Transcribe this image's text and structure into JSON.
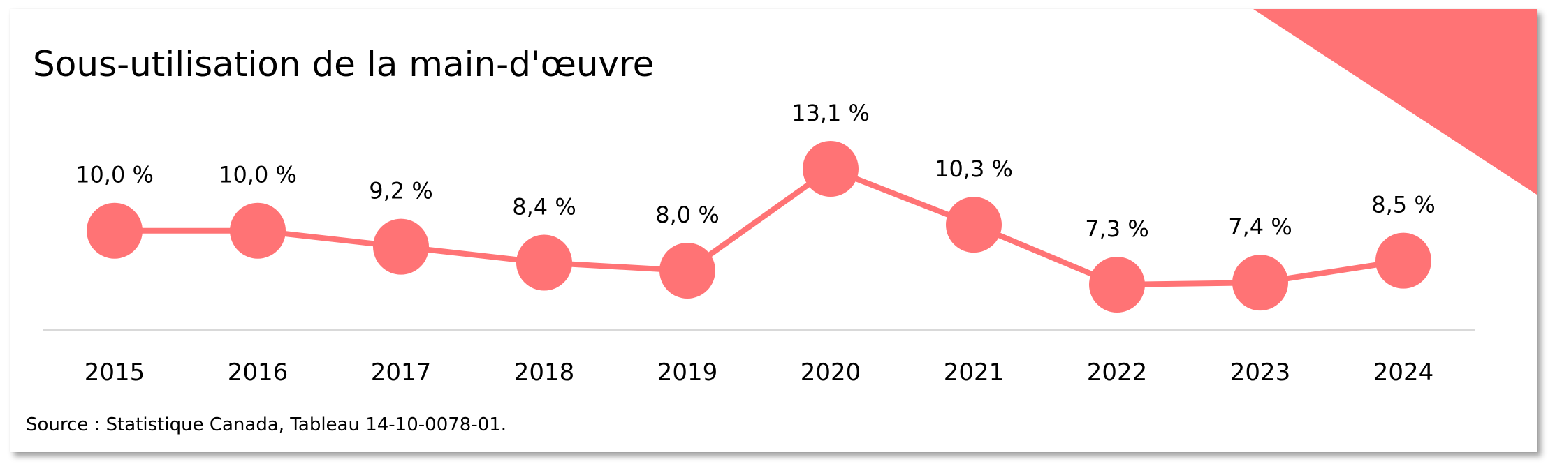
{
  "title": "Sous-utilisation de la main-d'œuvre",
  "source": "Source : Statistique Canada, Tableau 14-10-0078-01.",
  "colors": {
    "accent": "#ff7375",
    "axis": "#d9d9d9",
    "text": "#000000",
    "background": "#ffffff"
  },
  "corner_decoration": "triangle-top-right",
  "chart_data": {
    "type": "line",
    "title": "Sous-utilisation de la main-d'œuvre",
    "xlabel": "",
    "ylabel": "",
    "categories": [
      "2015",
      "2016",
      "2017",
      "2018",
      "2019",
      "2020",
      "2021",
      "2022",
      "2023",
      "2024"
    ],
    "series": [
      {
        "name": "Sous-utilisation de la main-d'œuvre",
        "values": [
          10.0,
          10.0,
          9.2,
          8.4,
          8.0,
          13.1,
          10.3,
          7.3,
          7.4,
          8.5
        ],
        "labels": [
          "10,0 %",
          "10,0 %",
          "9,2 %",
          "8,4 %",
          "8,0 %",
          "13,1 %",
          "10,3 %",
          "7,3 %",
          "7,4 %",
          "8,5 %"
        ]
      }
    ],
    "unit": "%",
    "grid": false,
    "legend": "none",
    "y_axis_visible": false,
    "markers": "large filled circles",
    "source": "Source : Statistique Canada, Tableau 14-10-0078-01."
  }
}
